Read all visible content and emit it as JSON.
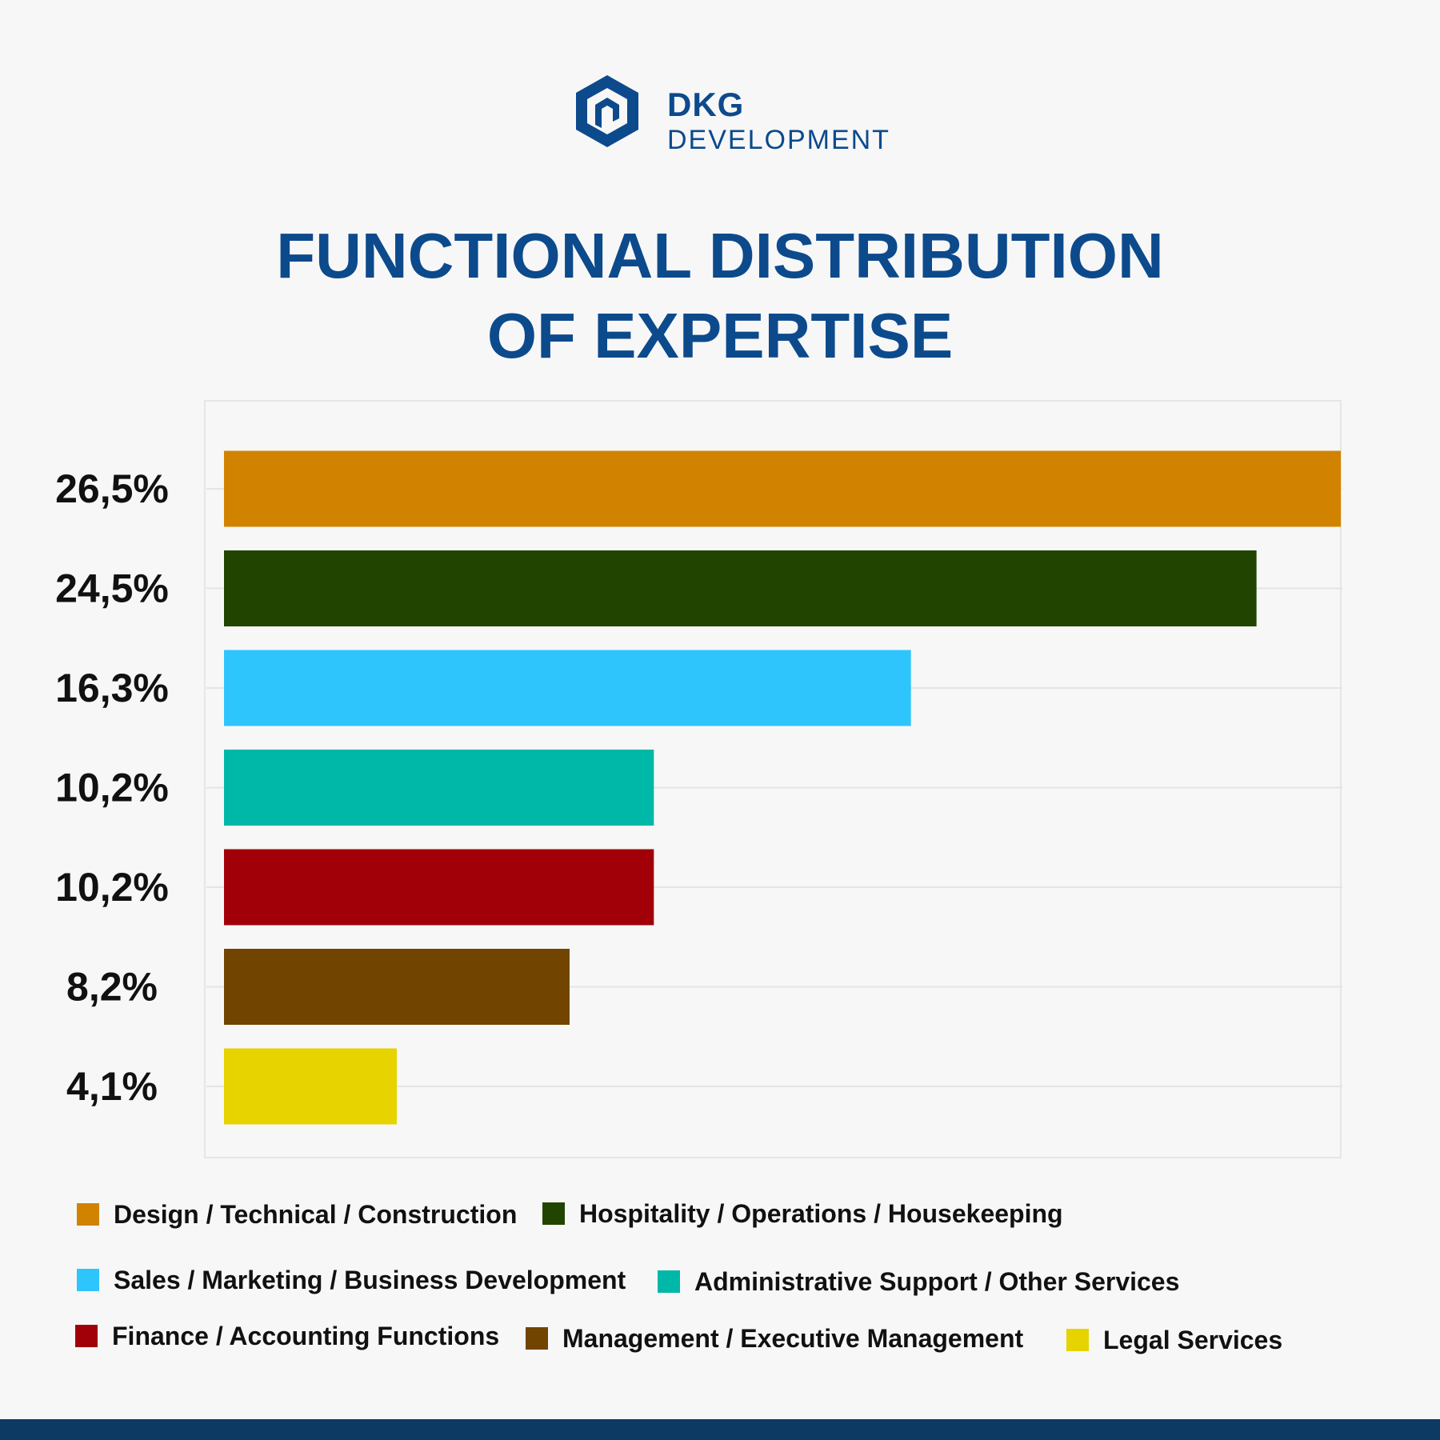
{
  "brand": {
    "name": "DKG",
    "subtitle": "DEVELOPMENT",
    "color": "#0c4a8c"
  },
  "title": {
    "line1": "FUNCTIONAL DISTRIBUTION",
    "line2": "OF EXPERTISE"
  },
  "chart_data": {
    "type": "bar",
    "orientation": "horizontal",
    "title": "FUNCTIONAL DISTRIBUTION OF EXPERTISE",
    "xlim": [
      0,
      26.5
    ],
    "grid": true,
    "legend_position": "bottom",
    "categories": [
      "Design / Technical / Construction",
      "Hospitality / Operations / Housekeeping",
      "Sales / Marketing / Business Development",
      "Administrative Support / Other Services",
      "Finance / Accounting Functions",
      "Management / Executive Management",
      "Legal Services"
    ],
    "values": [
      26.5,
      24.5,
      16.3,
      10.2,
      10.2,
      8.2,
      4.1
    ],
    "value_labels": [
      "26,5%",
      "24,5%",
      "16,3%",
      "10,2%",
      "10,2%",
      "8,2%",
      "4,1%"
    ],
    "colors": [
      "#d18300",
      "#214500",
      "#2ec5fd",
      "#00b8a8",
      "#a10008",
      "#714500",
      "#e6d300"
    ]
  },
  "legend": [
    {
      "label": "Design / Technical / Construction",
      "color": "#d18300"
    },
    {
      "label": "Hospitality / Operations / Housekeeping",
      "color": "#214500"
    },
    {
      "label": "Sales / Marketing / Business Development",
      "color": "#2ec5fd"
    },
    {
      "label": "Administrative Support / Other Services",
      "color": "#00b8a8"
    },
    {
      "label": "Finance / Accounting Functions",
      "color": "#a10008"
    },
    {
      "label": "Management / Executive Management",
      "color": "#714500"
    },
    {
      "label": "Legal Services",
      "color": "#e6d300"
    }
  ],
  "footer": {
    "color": "#0c3a63"
  }
}
